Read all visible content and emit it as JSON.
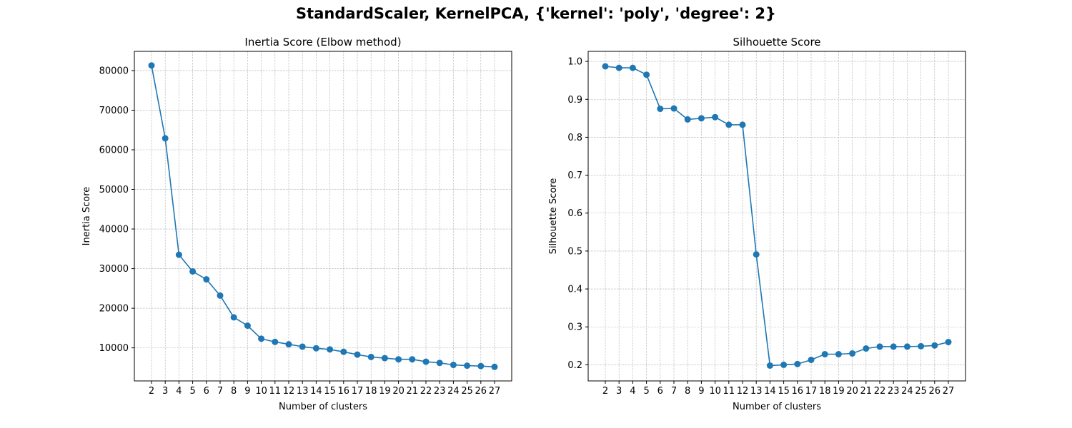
{
  "figure": {
    "suptitle": "StandardScaler, KernelPCA, {'kernel': 'poly', 'degree': 2}"
  },
  "chart_data": [
    {
      "type": "line",
      "title": "Inertia Score (Elbow method)",
      "xlabel": "Number of clusters",
      "ylabel": "Inertia Score",
      "x": [
        2,
        3,
        4,
        5,
        6,
        7,
        8,
        9,
        10,
        11,
        12,
        13,
        14,
        15,
        16,
        17,
        18,
        19,
        20,
        21,
        22,
        23,
        24,
        25,
        26,
        27
      ],
      "values": [
        81300,
        62900,
        33500,
        29300,
        27300,
        23200,
        17700,
        15600,
        12300,
        11500,
        10900,
        10300,
        9900,
        9600,
        9000,
        8300,
        7700,
        7400,
        7100,
        7100,
        6500,
        6200,
        5700,
        5500,
        5400,
        5200
      ],
      "y_ticks": [
        10000,
        20000,
        30000,
        40000,
        50000,
        60000,
        70000,
        80000
      ],
      "ylim": [
        1650,
        84850
      ],
      "xlim": [
        0.75,
        28.25
      ],
      "grid": true,
      "marker": "circle",
      "color": "#1f77b4"
    },
    {
      "type": "line",
      "title": "Silhouette Score",
      "xlabel": "Number of clusters",
      "ylabel": "Silhouette Score",
      "x": [
        2,
        3,
        4,
        5,
        6,
        7,
        8,
        9,
        10,
        11,
        12,
        13,
        14,
        15,
        16,
        17,
        18,
        19,
        20,
        21,
        22,
        23,
        24,
        25,
        26,
        27
      ],
      "values": [
        0.987,
        0.983,
        0.983,
        0.965,
        0.875,
        0.876,
        0.847,
        0.85,
        0.853,
        0.833,
        0.833,
        0.491,
        0.198,
        0.2,
        0.202,
        0.213,
        0.228,
        0.228,
        0.23,
        0.243,
        0.248,
        0.248,
        0.248,
        0.249,
        0.251,
        0.26
      ],
      "y_ticks": [
        0.2,
        0.3,
        0.4,
        0.5,
        0.6,
        0.7,
        0.8,
        0.9,
        1.0
      ],
      "y_tick_labels": [
        "0.2",
        "0.3",
        "0.4",
        "0.5",
        "0.6",
        "0.7",
        "0.8",
        "0.9",
        "1.0"
      ],
      "ylim": [
        0.1575,
        1.0265
      ],
      "xlim": [
        0.75,
        28.25
      ],
      "grid": true,
      "marker": "circle",
      "color": "#1f77b4"
    }
  ]
}
